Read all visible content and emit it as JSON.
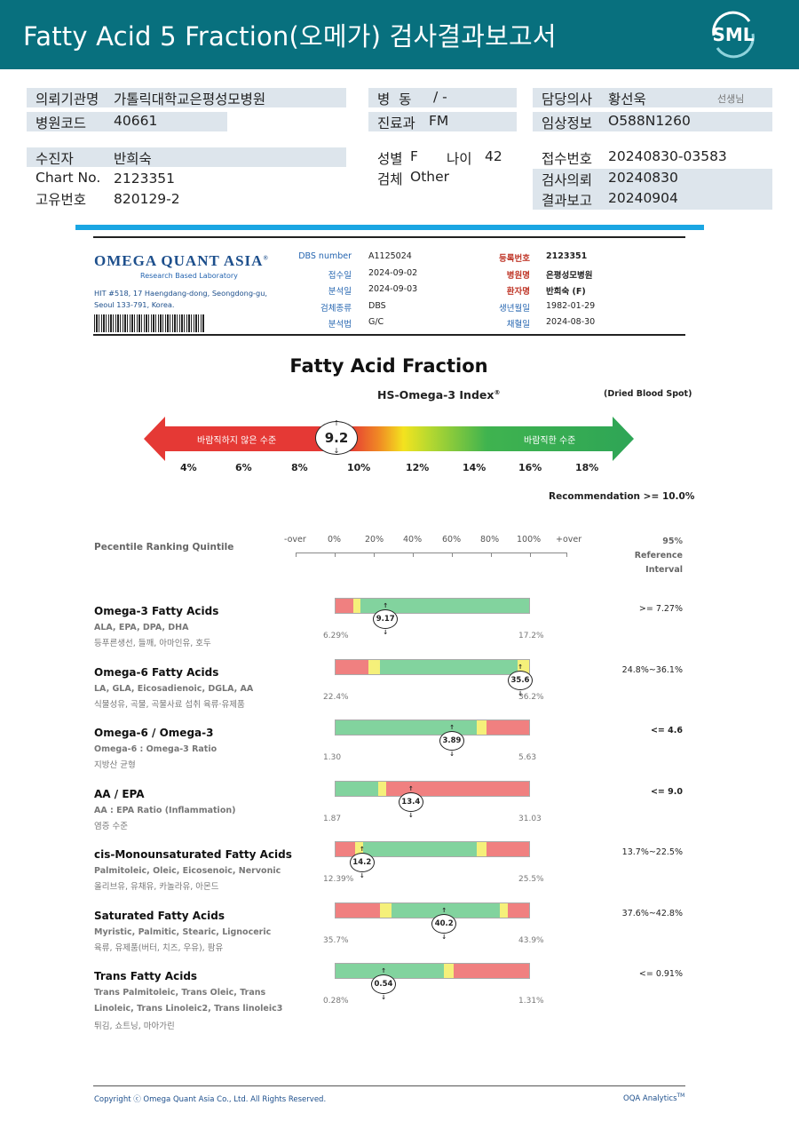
{
  "header": {
    "title": "Fatty Acid 5 Fraction(오메가) 검사결과보고서",
    "logo_text": "SML"
  },
  "info": {
    "hospital_label": "의뢰기관명",
    "hospital": "가톨릭대학교은평성모병원",
    "ward_label": "병  동",
    "ward": "/ -",
    "doctor_label": "담당의사",
    "doctor": "황선욱",
    "doctor_suffix": "선생님",
    "code_label": "병원코드",
    "code": "40661",
    "dept_label": "진료과",
    "dept": "FM",
    "clinical_label": "임상정보",
    "clinical": "O588N1260",
    "patient_label": "수진자",
    "patient": "반희숙",
    "sex_label": "성별",
    "sex": "F",
    "age_label": "나이",
    "age": "42",
    "receipt_label": "접수번호",
    "receipt": "20240830-03583",
    "chart_label": "Chart No.",
    "chart": "2123351",
    "specimen_label": "검체",
    "specimen": "Other",
    "request_label": "검사의뢰",
    "request": "20240830",
    "uid_label": "고유번호",
    "uid": "820129-2",
    "result_label": "결과보고",
    "result": "20240904"
  },
  "report_header": {
    "company": "OMEGA QUANT ASIA",
    "company_reg": "®",
    "company_sub": "Research Based Laboratory",
    "address": "HIT #518, 17 Haengdang-dong, Seongdong-gu, Seoul 133-791, Korea.",
    "col1": [
      {
        "k": "DBS number",
        "v": "A1125024"
      },
      {
        "k": "접수일",
        "v": "2024-09-02"
      },
      {
        "k": "분석일",
        "v": "2024-09-03"
      },
      {
        "k": "검체종류",
        "v": "DBS"
      },
      {
        "k": "분석법",
        "v": "G/C"
      }
    ],
    "col2": [
      {
        "k": "등록번호",
        "v": "2123351"
      },
      {
        "k": "병원명",
        "v": "은평성모병원"
      },
      {
        "k": "환자명",
        "v": "반희숙 (F)"
      },
      {
        "k": "생년월일",
        "v": "1982-01-29"
      },
      {
        "k": "채혈일",
        "v": "2024-08-30"
      }
    ]
  },
  "index_section": {
    "title": "Fatty Acid Fraction",
    "subtitle": "HS-Omega-3 Index",
    "subtitle_reg": "®",
    "spot": "(Dried Blood Spot)",
    "bad_label": "바람직하지 않은 수준",
    "good_label": "바람직한 수준",
    "value": "9.2",
    "ticks": [
      "4%",
      "6%",
      "8%",
      "10%",
      "12%",
      "14%",
      "16%",
      "18%"
    ],
    "recommendation": "Recommendation  >= 10.0%"
  },
  "scale": {
    "title": "Pecentile Ranking Quintile",
    "labels": [
      "-over",
      "0%",
      "20%",
      "40%",
      "60%",
      "80%",
      "100%",
      "+over"
    ],
    "ref_title_1": "95%",
    "ref_title_2": "Reference Interval"
  },
  "rows": [
    {
      "name": "Omega-3 Fatty Acids",
      "sub": "ALA, EPA, DPA, DHA",
      "sub2": "",
      "ko": "등푸른생선, 들깨, 아마인유, 호두",
      "value": "9.17",
      "pos": 0.26,
      "min": "6.29%",
      "max": "17.2%",
      "ref": ">= 7.27%",
      "ref_bold": false,
      "segs": [
        [
          0,
          0.09,
          "#f08080"
        ],
        [
          0.09,
          0.13,
          "#f5f07a"
        ],
        [
          0.13,
          1.0,
          "#82d39e"
        ]
      ]
    },
    {
      "name": "Omega-6 Fatty Acids",
      "sub": "LA, GLA, Eicosadienoic, DGLA, AA",
      "sub2": "",
      "ko": "식물성유, 곡물, 곡물사료 섭취 육류·유제품",
      "value": "35.6",
      "pos": 0.95,
      "min": "22.4%",
      "max": "36.2%",
      "ref": "24.8%~36.1%",
      "ref_bold": false,
      "segs": [
        [
          0,
          0.17,
          "#f08080"
        ],
        [
          0.17,
          0.23,
          "#f5f07a"
        ],
        [
          0.23,
          0.94,
          "#82d39e"
        ],
        [
          0.94,
          1.0,
          "#f5f07a"
        ]
      ]
    },
    {
      "name": "Omega-6 / Omega-3",
      "sub": "Omega-6 : Omega-3 Ratio",
      "sub2": "",
      "ko": "지방산 균형",
      "value": "3.89",
      "pos": 0.6,
      "min": "1.30",
      "max": "5.63",
      "ref": "<= 4.6",
      "ref_bold": true,
      "segs": [
        [
          0,
          0.73,
          "#82d39e"
        ],
        [
          0.73,
          0.78,
          "#f5f07a"
        ],
        [
          0.78,
          1.0,
          "#f08080"
        ]
      ]
    },
    {
      "name": "AA / EPA",
      "sub": "AA : EPA Ratio (Inflammation)",
      "sub2": "",
      "ko": "염증 수준",
      "value": "13.4",
      "pos": 0.39,
      "min": "1.87",
      "max": "31.03",
      "ref": "<= 9.0",
      "ref_bold": true,
      "segs": [
        [
          0,
          0.22,
          "#82d39e"
        ],
        [
          0.22,
          0.26,
          "#f5f07a"
        ],
        [
          0.26,
          1.0,
          "#f08080"
        ]
      ]
    },
    {
      "name": "cis-Monounsaturated Fatty Acids",
      "sub": "Palmitoleic, Oleic, Eicosenoic, Nervonic",
      "sub2": "",
      "ko": "올리브유, 유채유, 카놀라유, 아몬드",
      "value": "14.2",
      "pos": 0.14,
      "min": "12.39%",
      "max": "25.5%",
      "ref": "13.7%~22.5%",
      "ref_bold": false,
      "segs": [
        [
          0,
          0.1,
          "#f08080"
        ],
        [
          0.1,
          0.14,
          "#f5f07a"
        ],
        [
          0.14,
          0.73,
          "#82d39e"
        ],
        [
          0.73,
          0.78,
          "#f5f07a"
        ],
        [
          0.78,
          1.0,
          "#f08080"
        ]
      ]
    },
    {
      "name": "Saturated Fatty Acids",
      "sub": "Myristic, Palmitic, Stearic, Lignoceric",
      "sub2": "",
      "ko": "육류, 유제품(버터, 치즈, 우유), 팜유",
      "value": "40.2",
      "pos": 0.56,
      "min": "35.7%",
      "max": "43.9%",
      "ref": "37.6%~42.8%",
      "ref_bold": false,
      "segs": [
        [
          0,
          0.23,
          "#f08080"
        ],
        [
          0.23,
          0.29,
          "#f5f07a"
        ],
        [
          0.29,
          0.85,
          "#82d39e"
        ],
        [
          0.85,
          0.89,
          "#f5f07a"
        ],
        [
          0.89,
          1.0,
          "#f08080"
        ]
      ]
    },
    {
      "name": "Trans Fatty Acids",
      "sub": "Trans Palmitoleic, Trans Oleic, Trans",
      "sub2": "Linoleic, Trans Linoleic2, Trans linoleic3",
      "ko": "튀김, 쇼트닝, 마아가린",
      "value": "0.54",
      "pos": 0.25,
      "min": "0.28%",
      "max": "1.31%",
      "ref": "<= 0.91%",
      "ref_bold": false,
      "segs": [
        [
          0,
          0.56,
          "#82d39e"
        ],
        [
          0.56,
          0.61,
          "#f5f07a"
        ],
        [
          0.61,
          1.0,
          "#f08080"
        ]
      ]
    }
  ],
  "footer": {
    "copyright": "Copyright ⓒ Omega Quant Asia Co., Ltd.  All Rights Reserved.",
    "analytics": "OQA Analytics",
    "analytics_tm": "TM"
  },
  "colors": {
    "header": "#08707e",
    "field_bg": "#dde5ec",
    "accent_blue": "#1aa6e3",
    "navy": "#1d4f8c"
  }
}
